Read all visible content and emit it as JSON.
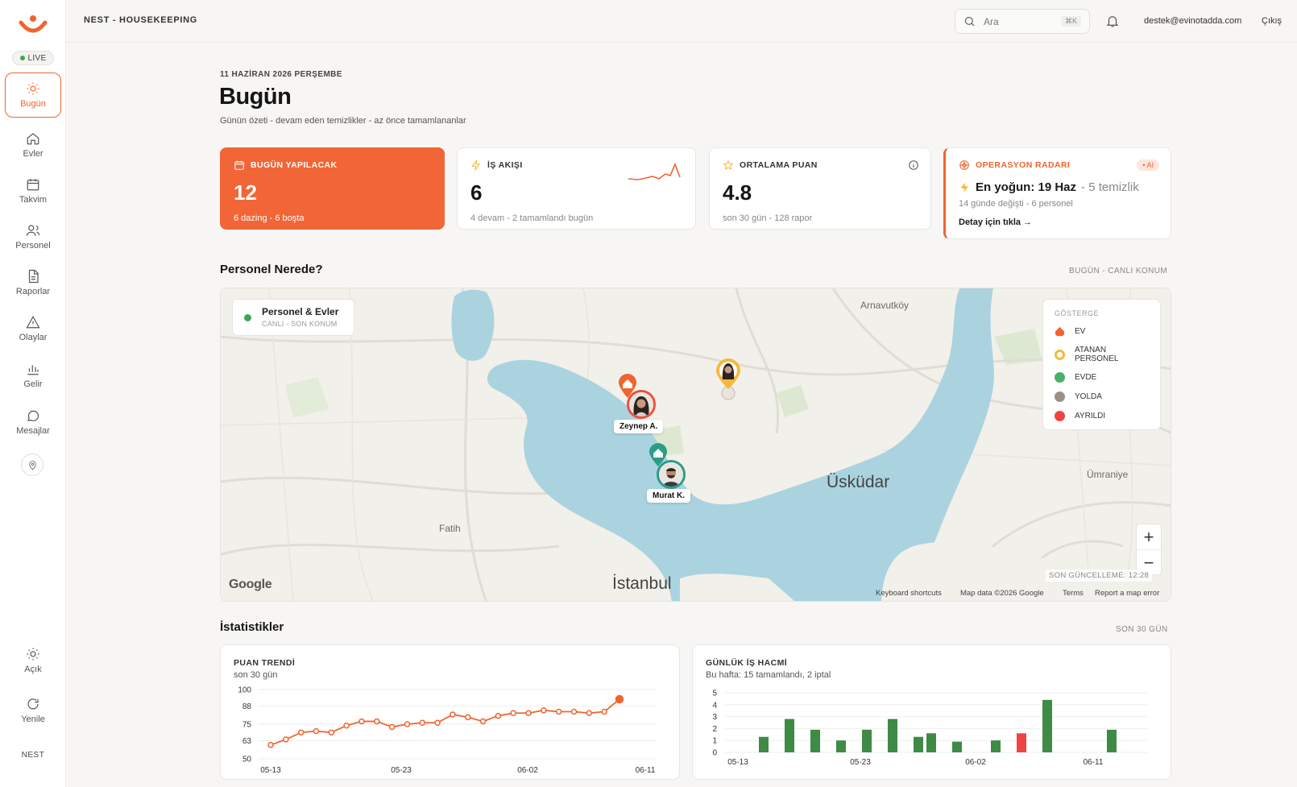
{
  "app": {
    "brand": "NEST - HOUSEKEEPING",
    "live_label": "LIVE",
    "footer": "NEST"
  },
  "topbar": {
    "search_placeholder": "Ara",
    "search_shortcut": "⌘K",
    "email": "destek@evinotadda.com",
    "logout": "Çıkış"
  },
  "sidebar": {
    "items": [
      {
        "label": "Bugün",
        "icon": "sun-icon",
        "active": true
      },
      {
        "label": "Evler",
        "icon": "home-icon"
      },
      {
        "label": "Takvim",
        "icon": "calendar-icon"
      },
      {
        "label": "Personel",
        "icon": "users-icon"
      },
      {
        "label": "Raporlar",
        "icon": "document-icon"
      },
      {
        "label": "Olaylar",
        "icon": "alert-icon"
      },
      {
        "label": "Gelir",
        "icon": "bar-chart-icon"
      },
      {
        "label": "Mesajlar",
        "icon": "message-icon"
      }
    ],
    "bottom": [
      {
        "label": "Açık",
        "icon": "sun-icon"
      },
      {
        "label": "Yenile",
        "icon": "refresh-icon"
      }
    ]
  },
  "header": {
    "date": "11 HAZİRAN 2026 PERŞEMBE",
    "title": "Bugün",
    "subtitle": "Günün özeti - devam eden temizlikler - az önce tamamlananlar"
  },
  "cards": {
    "today": {
      "title": "BUGÜN YAPILACAK",
      "value": "12",
      "detail": "6 dazing - 6 boşta"
    },
    "flow": {
      "title": "İŞ AKIŞI",
      "value": "6",
      "detail": "4 devam - 2 tamamlandı bugün"
    },
    "rating": {
      "title": "ORTALAMA PUAN",
      "value": "4.8",
      "detail": "son 30 gün - 128 rapor"
    },
    "radar": {
      "title": "OPERASYON RADARI",
      "badge": "• AI",
      "headline": "En yoğun: 19 Haz",
      "headline_extra": "- 5 temizlik",
      "detail": "14 günde değişti - 6 personel",
      "link": "Detay için tıkla →"
    }
  },
  "map_section": {
    "title": "Personel Nerede?",
    "right_label": "BUGÜN - CANLI KONUM",
    "chip_title": "Personel & Evler",
    "chip_sub": "CANLI - SON KONUM",
    "legend_title": "GÖSTERGE",
    "legend": [
      {
        "label": "EV",
        "color": "#f0642f"
      },
      {
        "label": "ATANAN PERSONEL",
        "color": "#f6b93b"
      },
      {
        "label": "EVDE",
        "color": "#4caf6b"
      },
      {
        "label": "YOLDA",
        "color": "#9a918a"
      },
      {
        "label": "AYRILDI",
        "color": "#ef4444"
      }
    ],
    "places": {
      "arnavutkoy": "Arnavutköy",
      "uskudar": "Üsküdar",
      "umraniye": "Ümraniye",
      "fatih": "Fatih",
      "istanbul": "İstanbul"
    },
    "people": [
      {
        "name": "Zeynep A.",
        "ring": "#ef4f3c"
      },
      {
        "name": "Murat K.",
        "ring": "#2a9d86"
      }
    ],
    "zoom_in": "+",
    "zoom_out": "−",
    "updated": "SON GÜNCELLEME: 12:28",
    "google": "Google",
    "attributions": [
      "Keyboard shortcuts",
      "Map data ©2026 Google",
      "Terms",
      "Report a map error"
    ]
  },
  "stats": {
    "title": "İstatistikler",
    "right_label": "SON 30 GÜN"
  },
  "chart_data": [
    {
      "type": "line",
      "title": "PUAN TRENDİ",
      "subtitle": "son 30 gün",
      "x_ticks": [
        "05-13",
        "05-23",
        "06-02",
        "06-11"
      ],
      "y_ticks": [
        100,
        88,
        75,
        63,
        50
      ],
      "ylim": [
        50,
        100
      ],
      "color": "#f0642f",
      "values": [
        60,
        64,
        69,
        70,
        69,
        74,
        77,
        77,
        73,
        75,
        76,
        76,
        82,
        80,
        77,
        81,
        83,
        83,
        85,
        84,
        84,
        83,
        84,
        93
      ]
    },
    {
      "type": "bar",
      "title": "GÜNLÜK İŞ HACMİ",
      "subtitle": "Bu hafta: 15 tamamlandı, 2 iptal",
      "x_ticks": [
        "05-13",
        "05-23",
        "06-02",
        "06-11"
      ],
      "y_ticks": [
        5,
        4,
        3,
        2,
        1,
        0
      ],
      "ylim": [
        0,
        5
      ],
      "colors": {
        "done": "#3d8b45",
        "cancelled": "#ef4444"
      },
      "bars": [
        {
          "day": 2,
          "value": 1.3,
          "status": "done"
        },
        {
          "day": 4,
          "value": 2.8,
          "status": "done"
        },
        {
          "day": 6,
          "value": 1.9,
          "status": "done"
        },
        {
          "day": 8,
          "value": 1.0,
          "status": "done"
        },
        {
          "day": 10,
          "value": 1.9,
          "status": "done"
        },
        {
          "day": 12,
          "value": 2.8,
          "status": "done"
        },
        {
          "day": 14,
          "value": 1.3,
          "status": "done"
        },
        {
          "day": 15,
          "value": 1.6,
          "status": "done"
        },
        {
          "day": 17,
          "value": 0.9,
          "status": "done"
        },
        {
          "day": 20,
          "value": 1.0,
          "status": "done"
        },
        {
          "day": 22,
          "value": 1.6,
          "status": "cancelled"
        },
        {
          "day": 24,
          "value": 4.4,
          "status": "done"
        },
        {
          "day": 29,
          "value": 1.9,
          "status": "done"
        }
      ]
    }
  ]
}
